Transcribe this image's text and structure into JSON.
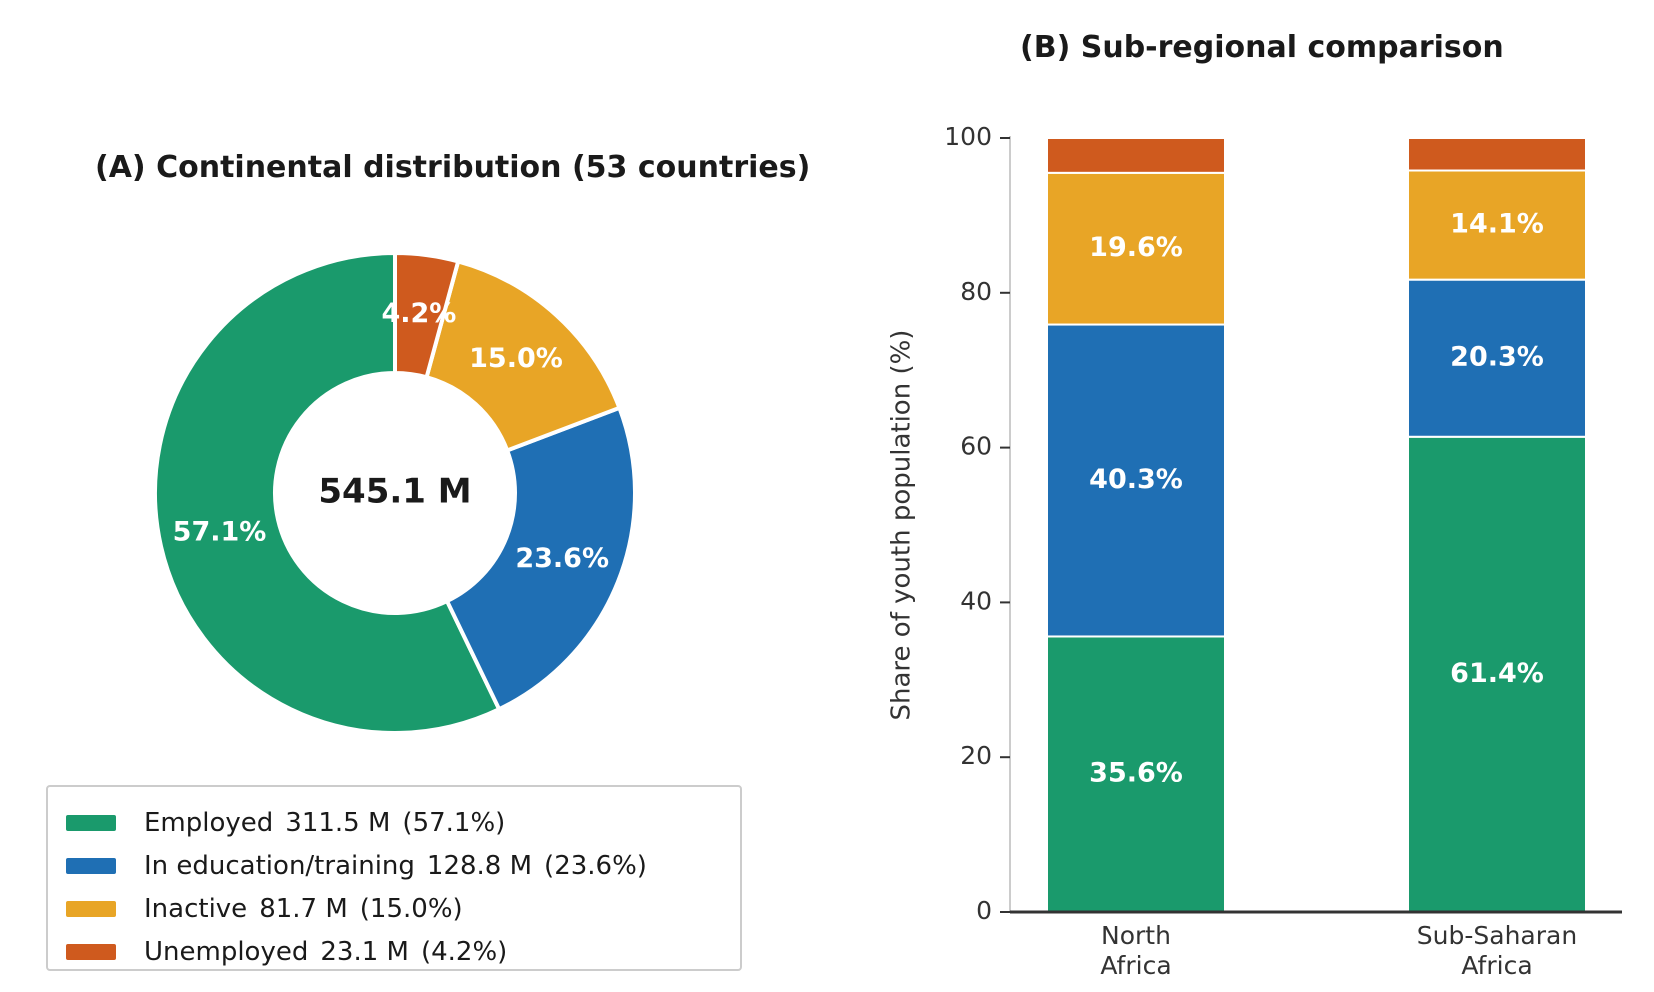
{
  "colors": {
    "Employed": "#1a9a6c",
    "In education/training": "#1f6fb4",
    "Inactive": "#e8a526",
    "Unemployed": "#cf5a1e"
  },
  "chart_data": [
    {
      "type": "pie",
      "variant": "donut",
      "title": "(A) Continental distribution (53 countries)",
      "center_label": "545.1 M",
      "start": "top",
      "direction": "counterclockwise",
      "slices": [
        {
          "name": "Employed",
          "value": 311.5,
          "percent": 57.1,
          "value_label": "311.5 M",
          "percent_label": "57.1%"
        },
        {
          "name": "In education/training",
          "value": 128.8,
          "percent": 23.6,
          "value_label": "128.8 M",
          "percent_label": "23.6%"
        },
        {
          "name": "Inactive",
          "value": 81.7,
          "percent": 15.0,
          "value_label": "81.7 M",
          "percent_label": "15.0%"
        },
        {
          "name": "Unemployed",
          "value": 23.1,
          "percent": 4.2,
          "value_label": "23.1 M",
          "percent_label": "4.2%"
        }
      ],
      "legend": "bottom-left"
    },
    {
      "type": "bar",
      "variant": "stacked",
      "title": "(B) Sub-regional comparison",
      "ylabel": "Share of youth population (%)",
      "xlabel": "",
      "ylim": [
        0,
        100
      ],
      "yticks": [
        0,
        20,
        40,
        60,
        80,
        100
      ],
      "grid": false,
      "categories": [
        [
          "North",
          "Africa"
        ],
        [
          "Sub-Saharan",
          "Africa"
        ]
      ],
      "series": [
        {
          "name": "Employed",
          "values": [
            35.6,
            61.4
          ],
          "labels": [
            "35.6%",
            "61.4%"
          ]
        },
        {
          "name": "In education/training",
          "values": [
            40.3,
            20.3
          ],
          "labels": [
            "40.3%",
            "20.3%"
          ]
        },
        {
          "name": "Inactive",
          "values": [
            19.6,
            14.1
          ],
          "labels": [
            "19.6%",
            "14.1%"
          ]
        },
        {
          "name": "Unemployed",
          "values": [
            4.5,
            4.2
          ],
          "labels": [
            "",
            ""
          ]
        }
      ]
    }
  ]
}
